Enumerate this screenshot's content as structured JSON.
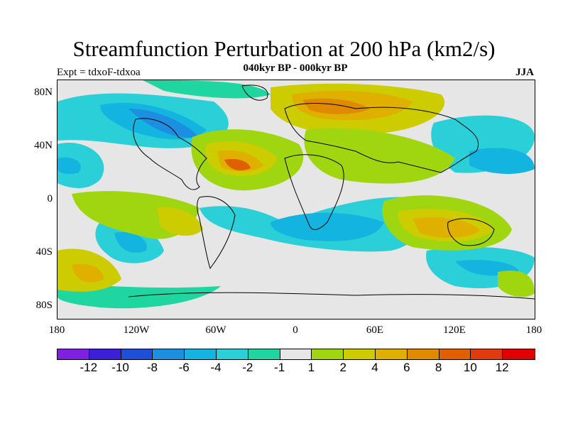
{
  "title": "Streamfunction Perturbation at 200 hPa (km2/s)",
  "subtitle": "040kyr BP - 000kyr BP",
  "left_label": "Expt = tdxoF-tdxoa",
  "right_label": "JJA",
  "lat_labels": [
    "80N",
    "40N",
    "0",
    "40S",
    "80S"
  ],
  "lon_labels": [
    "180",
    "120W",
    "60W",
    "0",
    "60E",
    "120E",
    "180"
  ],
  "colorbar": {
    "colors": [
      "#7f1fdf",
      "#3b1fd9",
      "#1e4fd6",
      "#1c8fe0",
      "#14b4e0",
      "#2acfd8",
      "#1fd6a0",
      "#e6e6e6",
      "#9fd610",
      "#cccc00",
      "#e0b000",
      "#e08a00",
      "#e06000",
      "#e03a10",
      "#e00000"
    ],
    "labels": [
      "-12",
      "-10",
      "-8",
      "-6",
      "-4",
      "-2",
      "-1",
      "1",
      "2",
      "4",
      "6",
      "8",
      "10",
      "12"
    ]
  }
}
